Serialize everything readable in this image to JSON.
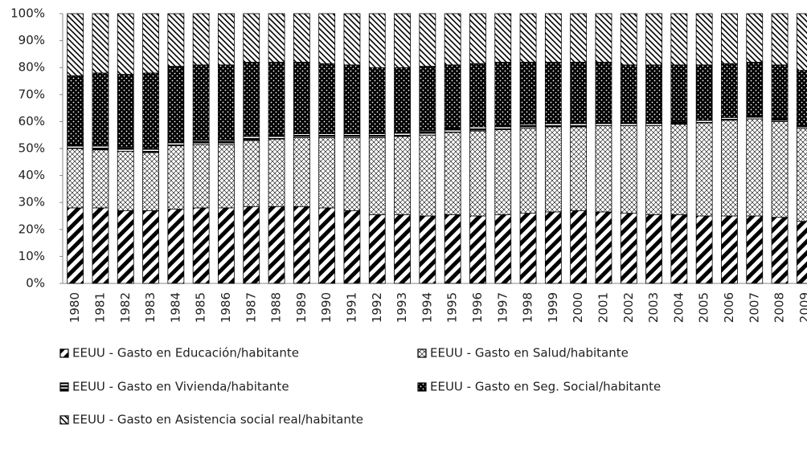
{
  "chart_data": {
    "type": "stacked-bar-100",
    "categories": [
      "1980",
      "1981",
      "1982",
      "1983",
      "1984",
      "1985",
      "1986",
      "1987",
      "1988",
      "1989",
      "1990",
      "1991",
      "1992",
      "1993",
      "1994",
      "1995",
      "1996",
      "1997",
      "1998",
      "1999",
      "2000",
      "2001",
      "2002",
      "2003",
      "2004",
      "2005",
      "2006",
      "2007",
      "2008",
      "2009"
    ],
    "series": [
      {
        "name": "EEUU - Gasto en Educación/habitante",
        "color": "#000000",
        "values": [
          28,
          28,
          27,
          27,
          27.5,
          28,
          28,
          28.5,
          28.5,
          28.5,
          28,
          27,
          25.5,
          25.5,
          25,
          25.5,
          25,
          25.5,
          26,
          26.5,
          27,
          26.5,
          26,
          25.5,
          25.5,
          25,
          25,
          25,
          24.5,
          23
        ]
      },
      {
        "name": "EEUU - Gasto en Salud/habitante",
        "color": "#000000",
        "values": [
          22,
          21.5,
          22,
          21.5,
          23.5,
          23.5,
          23.5,
          24.5,
          25,
          25.5,
          26,
          27,
          28.5,
          29,
          30,
          30.5,
          31.5,
          31.5,
          31.5,
          31.5,
          31,
          32,
          32.5,
          33,
          33.5,
          34.5,
          35.5,
          36,
          35.5,
          34.5
        ]
      },
      {
        "name": "EEUU - Gasto en Vivienda/habitante",
        "color": "#000000",
        "values": [
          1.5,
          1.5,
          1.5,
          1.5,
          1.5,
          1.5,
          1.5,
          1.5,
          1.5,
          1.5,
          1.5,
          1.5,
          1.5,
          1.5,
          1.5,
          1.5,
          1.5,
          1.5,
          1.5,
          1.5,
          1.5,
          1,
          1,
          1,
          1,
          1,
          1,
          1,
          1,
          1
        ]
      },
      {
        "name": "EEUU - Gasto en Seg. Social/habitante",
        "color": "#000000",
        "values": [
          25.5,
          27,
          27,
          28,
          28,
          28,
          28,
          27.5,
          27,
          26.5,
          26,
          25.5,
          24.5,
          24,
          24,
          23.5,
          23.5,
          23.5,
          23,
          22.5,
          22.5,
          22.5,
          21.5,
          21.5,
          21,
          20.5,
          20,
          20,
          20,
          20.5
        ]
      },
      {
        "name": "EEUU - Gasto en Asistencia social real/habitante",
        "color": "#000000",
        "values": [
          23,
          22,
          22.5,
          22,
          19.5,
          19,
          19,
          18,
          18,
          18,
          18.5,
          19,
          20,
          20,
          19.5,
          19,
          18.5,
          18,
          18,
          18,
          18,
          18,
          19,
          19,
          19,
          19,
          18.5,
          18,
          19,
          21
        ]
      }
    ],
    "ylim": [
      0,
      100
    ],
    "yticks": [
      {
        "value": 0,
        "label": "0%"
      },
      {
        "value": 10,
        "label": "10%"
      },
      {
        "value": 20,
        "label": "20%"
      },
      {
        "value": 30,
        "label": "30%"
      },
      {
        "value": 40,
        "label": "40%"
      },
      {
        "value": 50,
        "label": "50%"
      },
      {
        "value": 60,
        "label": "60%"
      },
      {
        "value": 70,
        "label": "70%"
      },
      {
        "value": 80,
        "label": "80%"
      },
      {
        "value": 90,
        "label": "90%"
      },
      {
        "value": 100,
        "label": "100%"
      }
    ]
  }
}
